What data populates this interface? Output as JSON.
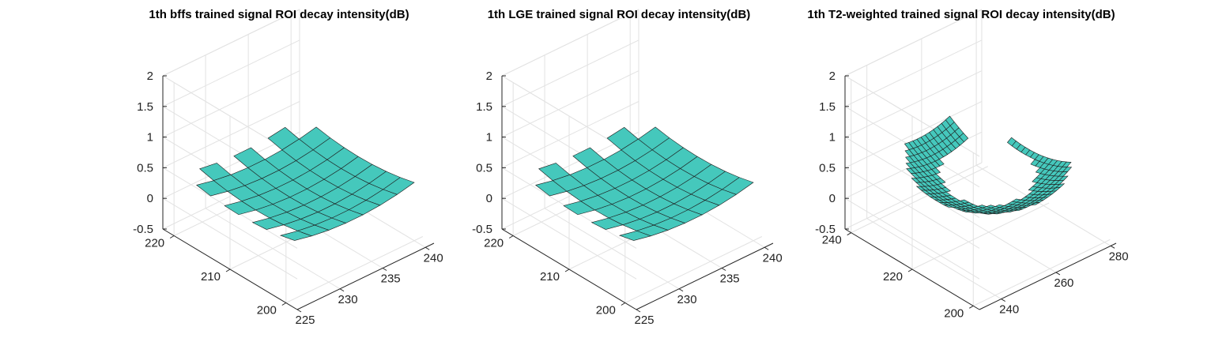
{
  "chart_data": [
    {
      "type": "surface",
      "title": "1th bffs trained signal ROI decay intensity(dB)",
      "xlabel": "",
      "ylabel": "",
      "zlabel": "",
      "x_ticks": [
        225,
        230,
        235,
        240
      ],
      "y_ticks": [
        200,
        210,
        220
      ],
      "z_ticks": [
        "-0.5",
        "0",
        "0.5",
        "1",
        "1.5",
        "2"
      ],
      "xlim": [
        225,
        241
      ],
      "ylim": [
        198,
        222
      ],
      "zlim": [
        -0.5,
        2
      ],
      "grid": true,
      "surface_color": "#45c8bc",
      "surface": {
        "x_range": [
          226,
          240
        ],
        "y_range": [
          200,
          220
        ],
        "x_step": 2,
        "y_step": 2.5,
        "z_min": 0.2,
        "z_max": 0.45
      },
      "grid_ranges": {
        "x": [
          224,
          241
        ],
        "y": [
          198,
          222
        ]
      }
    },
    {
      "type": "surface",
      "title": "1th LGE trained signal ROI decay intensity(dB)",
      "xlabel": "",
      "ylabel": "",
      "zlabel": "",
      "x_ticks": [
        225,
        230,
        235,
        240
      ],
      "y_ticks": [
        200,
        210,
        220
      ],
      "z_ticks": [
        "-0.5",
        "0",
        "0.5",
        "1",
        "1.5",
        "2"
      ],
      "xlim": [
        225,
        241
      ],
      "ylim": [
        198,
        222
      ],
      "zlim": [
        -0.5,
        2
      ],
      "grid": true,
      "surface_color": "#45c8bc",
      "surface": {
        "x_range": [
          226,
          240
        ],
        "y_range": [
          200,
          220
        ],
        "x_step": 2,
        "y_step": 2.5,
        "z_min": 0.2,
        "z_max": 0.45
      },
      "grid_ranges": {
        "x": [
          224,
          241
        ],
        "y": [
          198,
          222
        ]
      }
    },
    {
      "type": "surface",
      "title": "1th T2-weighted trained signal ROI decay intensity(dB)",
      "xlabel": "",
      "ylabel": "",
      "zlabel": "",
      "x_ticks": [
        240,
        260,
        280
      ],
      "y_ticks": [
        200,
        220,
        240
      ],
      "z_ticks": [
        "-0.5",
        "0",
        "0.5",
        "1",
        "1.5",
        "2"
      ],
      "xlim": [
        232,
        282
      ],
      "ylim": [
        198,
        242
      ],
      "zlim": [
        -0.5,
        2
      ],
      "grid": true,
      "surface_color": "#45c8bc",
      "surface": {
        "x_range": [
          236,
          276
        ],
        "y_range": [
          202,
          240
        ],
        "x_step": 1.5,
        "y_step": 1.5,
        "z_min": 0.2,
        "z_max": 0.9
      },
      "grid_ranges": {
        "x": [
          232,
          282
        ],
        "y": [
          198,
          242
        ]
      }
    }
  ]
}
